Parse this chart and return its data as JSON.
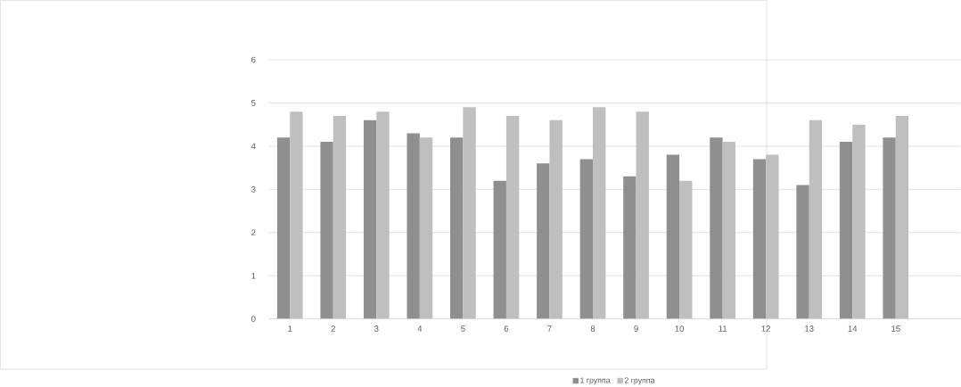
{
  "chart_data": {
    "type": "bar",
    "categories": [
      "1",
      "2",
      "3",
      "4",
      "5",
      "6",
      "7",
      "8",
      "9",
      "10",
      "11",
      "12",
      "13",
      "14",
      "15",
      null
    ],
    "series": [
      {
        "name": "1 группа",
        "color": "#8f8f8f",
        "values": [
          4.2,
          4.1,
          4.6,
          4.3,
          4.2,
          3.2,
          3.6,
          3.7,
          3.3,
          3.8,
          4.2,
          3.7,
          3.1,
          4.1,
          4.2,
          null
        ]
      },
      {
        "name": "2 группа",
        "color": "#bfbfbf",
        "values": [
          4.8,
          4.7,
          4.8,
          4.2,
          4.9,
          4.7,
          4.6,
          4.9,
          4.8,
          3.2,
          4.1,
          3.8,
          4.6,
          4.5,
          4.7,
          null
        ]
      }
    ],
    "ylim": [
      0,
      6
    ],
    "yticks": [
      0,
      1,
      2,
      3,
      4,
      5,
      6
    ],
    "grid": "y",
    "legend": "bottom"
  }
}
